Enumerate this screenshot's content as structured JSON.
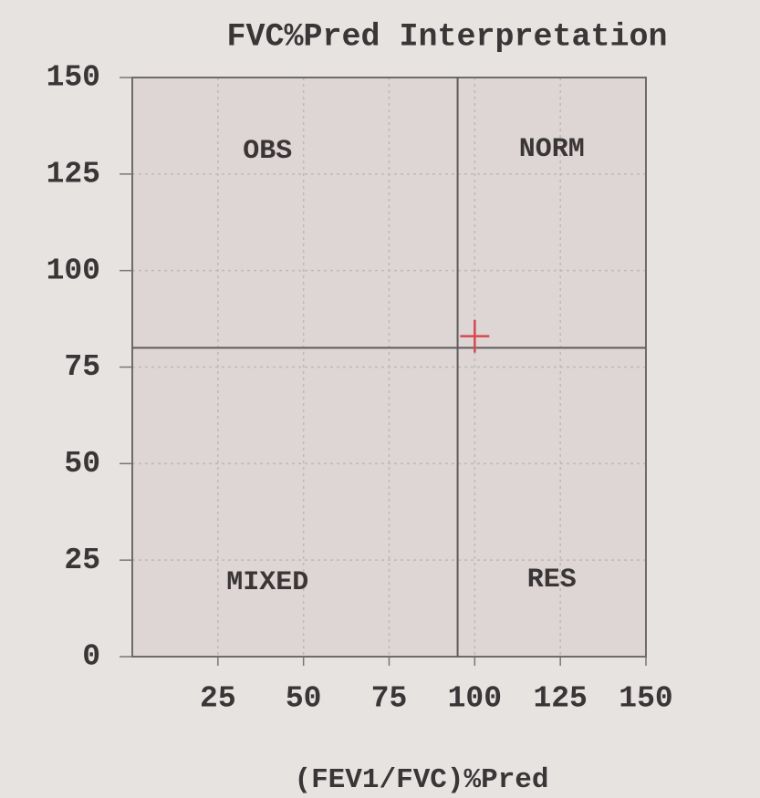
{
  "chart_data": {
    "type": "scatter",
    "title": "FVC%Pred Interpretation",
    "x_label": "(FEV1/FVC)%Pred",
    "xlim": [
      0,
      150
    ],
    "xticks": [
      25,
      50,
      75,
      100,
      125,
      150
    ],
    "ylim": [
      0,
      150
    ],
    "yticks": [
      0,
      25,
      50,
      75,
      100,
      125,
      150
    ],
    "grid": true,
    "reference_lines": {
      "x": 95,
      "y": 80
    },
    "quadrant_labels": [
      "OBS",
      "NORM",
      "MIXED",
      "RES"
    ],
    "series": [
      {
        "color": "#d9484f",
        "x": [
          100
        ],
        "values": [
          83
        ]
      }
    ]
  }
}
